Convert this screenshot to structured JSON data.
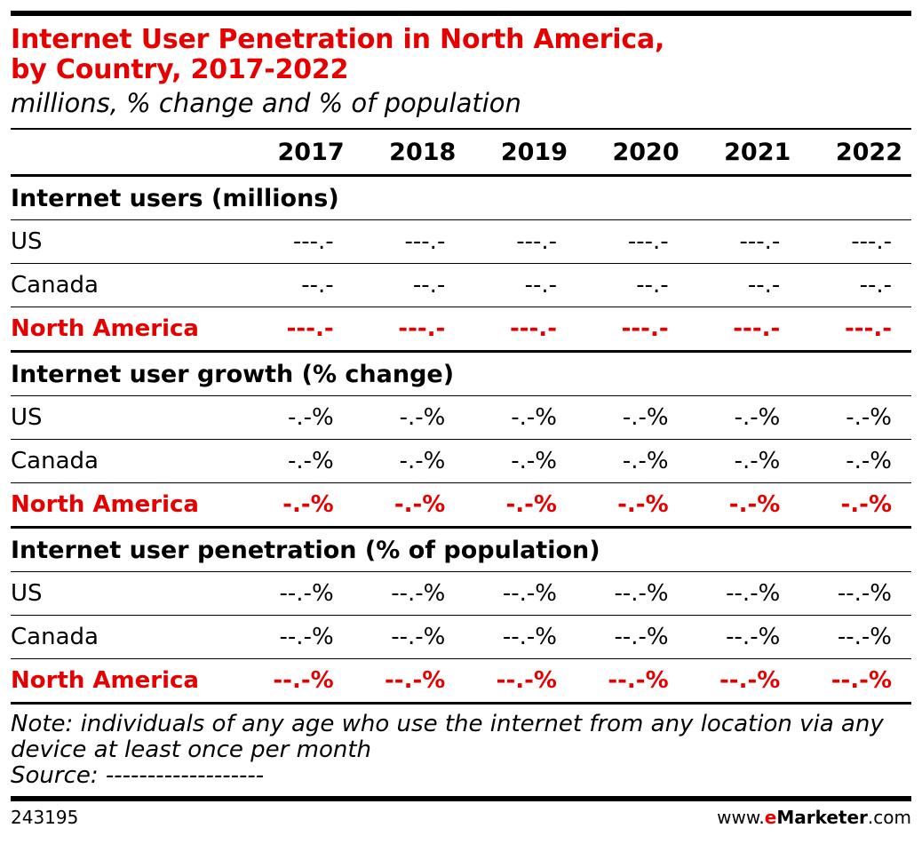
{
  "title_line1": "Internet User Penetration in North America,",
  "title_line2": "by Country, 2017-2022",
  "subtitle": "millions, % change and % of population",
  "colors": {
    "accent": "#e60000",
    "text": "#000000"
  },
  "chart_data": {
    "type": "table",
    "columns": [
      "2017",
      "2018",
      "2019",
      "2020",
      "2021",
      "2022"
    ],
    "sections": [
      {
        "heading": "Internet users (millions)",
        "rows": [
          {
            "label": "US",
            "values": [
              "---.-",
              "---.-",
              "---.-",
              "---.-",
              "---.-",
              "---.-"
            ]
          },
          {
            "label": "Canada",
            "values": [
              "--.-",
              "--.-",
              "--.-",
              "--.-",
              "--.-",
              "--.-"
            ]
          },
          {
            "label": "North America",
            "values": [
              "---.-",
              "---.-",
              "---.-",
              "---.-",
              "---.-",
              "---.-"
            ],
            "total": true
          }
        ]
      },
      {
        "heading": "Internet user growth (% change)",
        "rows": [
          {
            "label": "US",
            "values": [
              "-.-%",
              "-.-%",
              "-.-%",
              "-.-%",
              "-.-%",
              "-.-%"
            ]
          },
          {
            "label": "Canada",
            "values": [
              "-.-%",
              "-.-%",
              "-.-%",
              "-.-%",
              "-.-%",
              "-.-%"
            ]
          },
          {
            "label": "North America",
            "values": [
              "-.-%",
              "-.-%",
              "-.-%",
              "-.-%",
              "-.-%",
              "-.-%"
            ],
            "total": true
          }
        ]
      },
      {
        "heading": "Internet user penetration (% of population)",
        "rows": [
          {
            "label": "US",
            "values": [
              "--.-%",
              "--.-%",
              "--.-%",
              "--.-%",
              "--.-%",
              "--.-%"
            ]
          },
          {
            "label": "Canada",
            "values": [
              "--.-%",
              "--.-%",
              "--.-%",
              "--.-%",
              "--.-%",
              "--.-%"
            ]
          },
          {
            "label": "North America",
            "values": [
              "--.-%",
              "--.-%",
              "--.-%",
              "--.-%",
              "--.-%",
              "--.-%"
            ],
            "total": true
          }
        ]
      }
    ]
  },
  "note_line1": "Note: individuals of any age who use the internet from any location via any",
  "note_line2": "device at least once per month",
  "source": "Source: -------------------",
  "chart_id": "243195",
  "brand": {
    "prefix": "www.",
    "e": "e",
    "name": "Marketer",
    "suffix": ".com"
  }
}
